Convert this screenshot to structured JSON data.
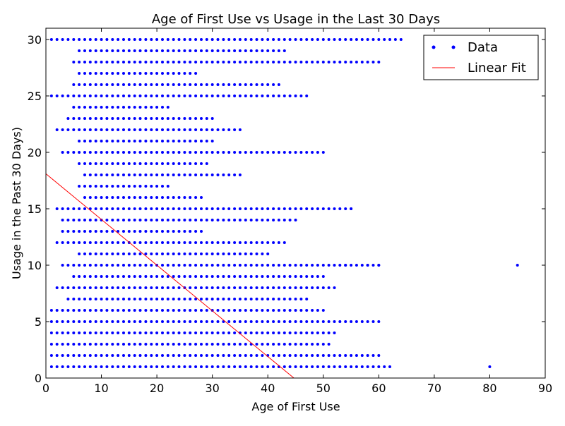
{
  "chart_data": {
    "type": "scatter",
    "title": "Age of First Use vs Usage in the Last 30 Days",
    "xlabel": "Age of First Use",
    "ylabel": "Usage in the Past 30 Days)",
    "xlim": [
      0,
      90
    ],
    "ylim": [
      0,
      31
    ],
    "xticks": [
      "0",
      "10",
      "20",
      "30",
      "40",
      "50",
      "60",
      "70",
      "80",
      "90"
    ],
    "yticks": [
      "0",
      "5",
      "10",
      "15",
      "20",
      "25",
      "30"
    ],
    "grid": false,
    "legend_position": "top-right",
    "colors": {
      "data": "#0000ff",
      "fit": "#ff0000"
    },
    "series": [
      {
        "name": "Data",
        "kind": "points",
        "x_range_by_y": [
          [
            1,
            1,
            62
          ],
          [
            2,
            1,
            60
          ],
          [
            3,
            1,
            51
          ],
          [
            4,
            1,
            52
          ],
          [
            5,
            1,
            60
          ],
          [
            6,
            1,
            50
          ],
          [
            7,
            4,
            47
          ],
          [
            8,
            2,
            52
          ],
          [
            9,
            5,
            50
          ],
          [
            10,
            3,
            60
          ],
          [
            11,
            6,
            40
          ],
          [
            12,
            2,
            43
          ],
          [
            13,
            3,
            28
          ],
          [
            14,
            3,
            45
          ],
          [
            15,
            2,
            55
          ],
          [
            16,
            7,
            28
          ],
          [
            17,
            6,
            22
          ],
          [
            18,
            7,
            35
          ],
          [
            19,
            6,
            29
          ],
          [
            20,
            3,
            50
          ],
          [
            21,
            6,
            30
          ],
          [
            22,
            2,
            35
          ],
          [
            23,
            4,
            30
          ],
          [
            24,
            5,
            22
          ],
          [
            25,
            1,
            47
          ],
          [
            26,
            5,
            42
          ],
          [
            27,
            6,
            27
          ],
          [
            28,
            5,
            60
          ],
          [
            29,
            6,
            43
          ],
          [
            30,
            1,
            64
          ]
        ],
        "extra_points": [
          [
            80,
            1
          ],
          [
            85,
            10
          ],
          [
            58,
            10
          ],
          [
            60,
            10
          ],
          [
            54,
            10
          ],
          [
            55,
            15
          ]
        ]
      },
      {
        "name": "Linear Fit",
        "kind": "line",
        "x": [
          0,
          44.7
        ],
        "y": [
          18.1,
          0
        ]
      }
    ]
  }
}
